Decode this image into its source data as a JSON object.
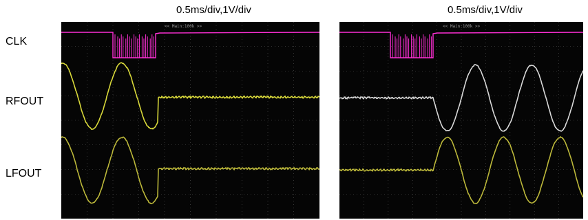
{
  "left_panel": {
    "scale_label": "0.5ms/div,1V/div",
    "timebase_tag": "<< Main:100k >>"
  },
  "right_panel": {
    "scale_label": "0.5ms/div,1V/div",
    "timebase_tag": "<< Main:100k >>"
  },
  "signal_labels": {
    "clk": "CLK",
    "rfout": "RFOUT",
    "lfout": "LFOUT"
  },
  "colors": {
    "screen_bg": "#050505",
    "grid": "#5a5a5a",
    "clk_trace": "#ff2fd6",
    "rfout_trace_left": "#d8d83a",
    "rfout_trace_right": "#d8d8d8",
    "lfout_trace": "#bcb83a"
  }
}
